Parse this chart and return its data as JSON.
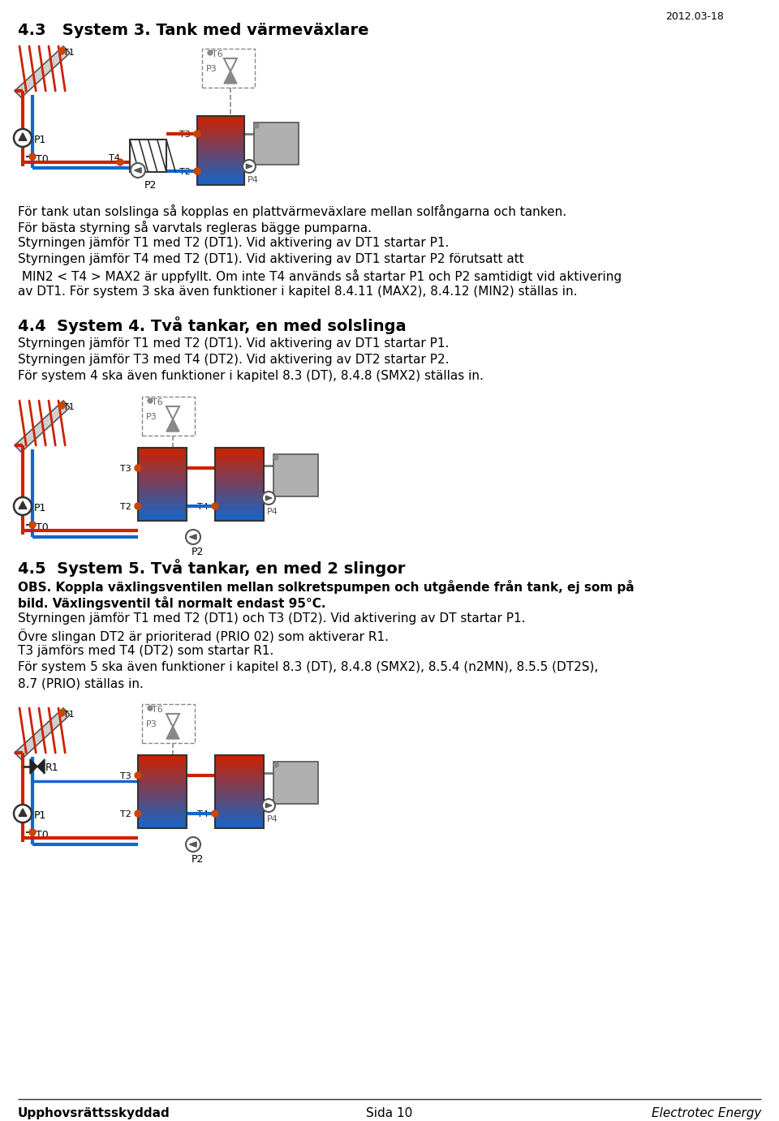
{
  "page_width": 9.6,
  "page_height": 13.82,
  "bg_color": "#ffffff",
  "date_text": "2012.03-18",
  "section_43_title": "4.3   System 3. Tank med värmeväxlare",
  "section_43_body": [
    "För tank utan solslinga så kopplas en plattvärmeväxlare mellan solfångarna och tanken.",
    "För bästa styrning så varvtals regleras bägge pumparna.",
    "Styrningen jämför T1 med T2 (DT1). Vid aktivering av DT1 startar P1.",
    "Styrningen jämför T4 med T2 (DT1). Vid aktivering av DT1 startar P2 förutsatt att",
    " MIN2 < T4 > MAX2 är uppfyllt. Om inte T4 används så startar P1 och P2 samtidigt vid aktivering",
    "av DT1. För system 3 ska även funktioner i kapitel 8.4.11 (MAX2), 8.4.12 (MIN2) ställas in."
  ],
  "section_44_title": "4.4  System 4. Två tankar, en med solslinga",
  "section_44_body": [
    "Styrningen jämför T1 med T2 (DT1). Vid aktivering av DT1 startar P1.",
    "Styrningen jämför T3 med T4 (DT2). Vid aktivering av DT2 startar P2.",
    "För system 4 ska även funktioner i kapitel 8.3 (DT), 8.4.8 (SMX2) ställas in."
  ],
  "section_45_title": "4.5  System 5. Två tankar, en med 2 slingor",
  "section_45_obs_bold": "OBS. Koppla växlingsventilen mellan solkretspumpen och utgående från tank, ej som på\nbild. Växlingsventil tål normalt endast 95°C.",
  "section_45_body": [
    "Styrningen jämför T1 med T2 (DT1) och T3 (DT2). Vid aktivering av DT startar P1.",
    "Övre slingan DT2 är prioriterad (PRIO 02) som aktiverar R1.",
    "T3 jämförs med T4 (DT2) som startar R1.",
    "För system 5 ska även funktioner i kapitel 8.3 (DT), 8.4.8 (SMX2), 8.5.4 (n2MN), 8.5.5 (DT2S),",
    "8.7 (PRIO) ställas in."
  ],
  "footer_left": "Upphovsrättsskyddad",
  "footer_center": "Sida 10",
  "footer_right": "Electrotec Energy",
  "red": "#cc2200",
  "blue": "#1166cc",
  "gray": "#888888",
  "darkgray": "#555555",
  "lightgray": "#aaaaaa",
  "orange": "#cc4400"
}
